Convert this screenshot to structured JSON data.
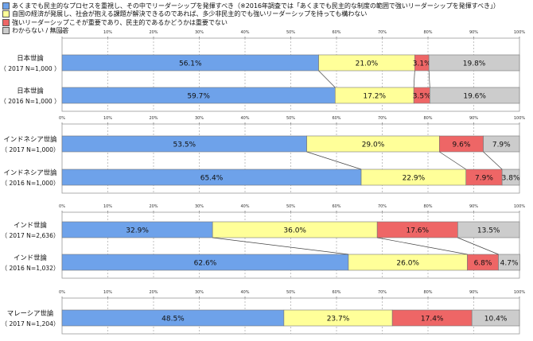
{
  "chart_data": {
    "type": "bar",
    "stacked": "horizontal-100-percent",
    "legend": [
      "あくまでも民主的なプロセスを重視し、その中でリーダーシップを発揮すべき（※2016年調査では「あくまでも民主的な制度の範囲で強いリーダーシップを発揮すべき」）",
      "自国の経済が発展し、社会が抱える課題が解決できるのであれば、多少非民主的でも強いリーダーシップを持っても構わない",
      "強いリーダーシップこそが重要であり、民主的であるかどうかは重要でない",
      "わからない / 無回答"
    ],
    "colors": [
      "#6ea2ea",
      "#ffff99",
      "#ee6666",
      "#cccccc"
    ],
    "tick_labels": [
      "0%",
      "10%",
      "20%",
      "30%",
      "40%",
      "50%",
      "60%",
      "70%",
      "80%",
      "90%",
      "100%"
    ],
    "xlim": [
      0,
      100
    ],
    "groups": [
      {
        "rows": [
          {
            "label": "日本世論",
            "sublabel": "（ 2017 N=1,000 ）",
            "values": [
              56.1,
              21.0,
              3.1,
              19.8
            ],
            "value_labels": [
              "56.1%",
              "21.0%",
              "3.1%",
              "19.8%"
            ]
          },
          {
            "label": "日本世論",
            "sublabel": "（ 2016 N=1,000 ）",
            "values": [
              59.7,
              17.2,
              3.5,
              19.6
            ],
            "value_labels": [
              "59.7%",
              "17.2%",
              "3.5%",
              "19.6%"
            ]
          }
        ]
      },
      {
        "rows": [
          {
            "label": "インドネシア世論",
            "sublabel": "（ 2017 N=1,000）",
            "values": [
              53.5,
              29.0,
              9.6,
              7.9
            ],
            "value_labels": [
              "53.5%",
              "29.0%",
              "9.6%",
              "7.9%"
            ]
          },
          {
            "label": "インドネシア世論",
            "sublabel": "（ 2016 N=1,000）",
            "values": [
              65.4,
              22.9,
              7.9,
              3.8
            ],
            "value_labels": [
              "65.4%",
              "22.9%",
              "7.9%",
              "3.8%"
            ]
          }
        ]
      },
      {
        "rows": [
          {
            "label": "インド世論",
            "sublabel": "（ 2017 N=2,636）",
            "values": [
              32.9,
              36.0,
              17.6,
              13.5
            ],
            "value_labels": [
              "32.9%",
              "36.0%",
              "17.6%",
              "13.5%"
            ]
          },
          {
            "label": "インド世論",
            "sublabel": "（ 2016 N=1,032）",
            "values": [
              62.6,
              26.0,
              6.8,
              4.7
            ],
            "value_labels": [
              "62.6%",
              "26.0%",
              "6.8%",
              "4.7%"
            ]
          }
        ]
      },
      {
        "rows": [
          {
            "label": "マレーシア世論",
            "sublabel": "（ 2017 N=1,204）",
            "values": [
              48.5,
              23.7,
              17.4,
              10.4
            ],
            "value_labels": [
              "48.5%",
              "23.7%",
              "17.4%",
              "10.4%"
            ]
          }
        ]
      }
    ]
  }
}
